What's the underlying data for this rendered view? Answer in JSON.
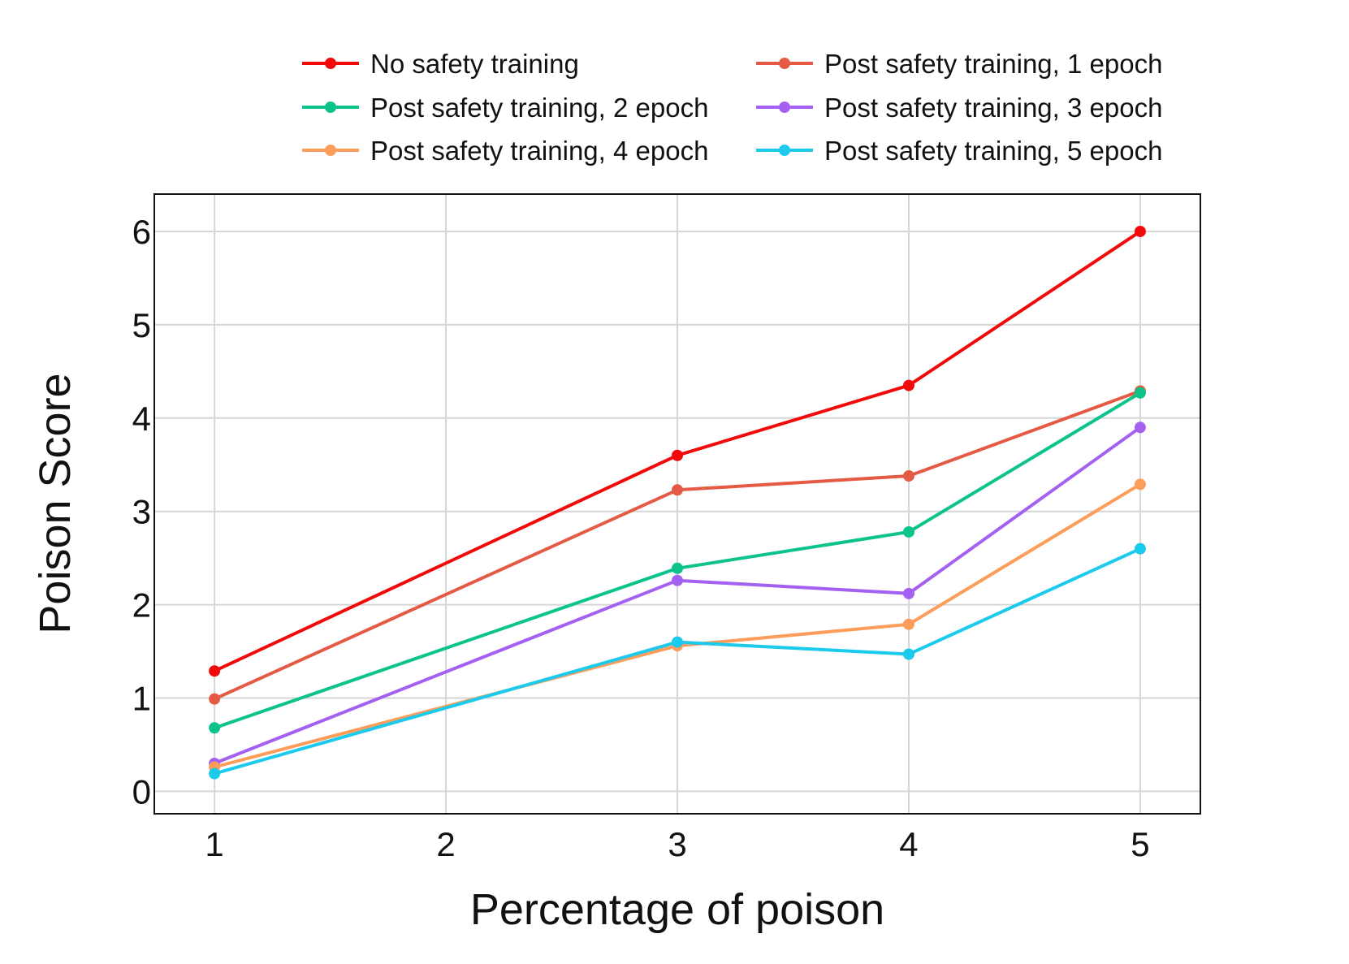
{
  "chart_data": {
    "type": "line",
    "title": "",
    "xlabel": "Percentage of poison",
    "ylabel": "Poison Score",
    "xlim": [
      0.74,
      5.26
    ],
    "ylim": [
      -0.24,
      6.4
    ],
    "x_ticks": [
      "1",
      "2",
      "3",
      "4",
      "5"
    ],
    "y_ticks": [
      "0",
      "1",
      "2",
      "3",
      "4",
      "5",
      "6"
    ],
    "grid": true,
    "legend_position": "top",
    "series": [
      {
        "name": "No safety training",
        "color": "#f20a0a",
        "x": [
          1,
          3,
          4,
          5
        ],
        "y": [
          1.29,
          3.6,
          4.35,
          6.0
        ]
      },
      {
        "name": "Post safety training, 1 epoch",
        "color": "#e55a44",
        "x": [
          1,
          3,
          4,
          5
        ],
        "y": [
          0.99,
          3.23,
          3.38,
          4.29
        ]
      },
      {
        "name": "Post safety training, 2 epoch",
        "color": "#0bc38b",
        "x": [
          1,
          3,
          4,
          5
        ],
        "y": [
          0.68,
          2.39,
          2.78,
          4.27
        ]
      },
      {
        "name": "Post safety training, 3 epoch",
        "color": "#a461f1",
        "x": [
          1,
          3,
          4,
          5
        ],
        "y": [
          0.3,
          2.26,
          2.12,
          3.9
        ]
      },
      {
        "name": "Post safety training, 4 epoch",
        "color": "#fd9d5a",
        "x": [
          1,
          3,
          4,
          5
        ],
        "y": [
          0.26,
          1.56,
          1.79,
          3.29
        ]
      },
      {
        "name": "Post safety training, 5 epoch",
        "color": "#1bcaec",
        "x": [
          1,
          3,
          4,
          5
        ],
        "y": [
          0.19,
          1.6,
          1.47,
          2.6
        ]
      }
    ]
  }
}
